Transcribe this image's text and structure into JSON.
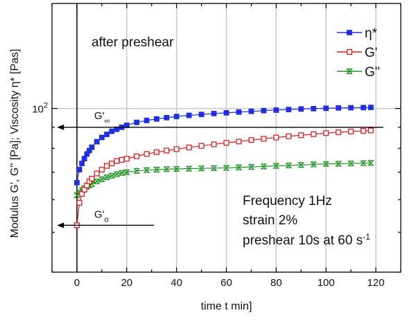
{
  "chart_data": {
    "type": "scatter",
    "xlabel": "time t min]",
    "ylabel": "Modulus G', G'' [Pa]; Viscosity η* [Pas]",
    "xlim": [
      -10,
      130
    ],
    "ylim": [
      40,
      180
    ],
    "yscale": "log",
    "grid": true,
    "legend_position": "top-right",
    "x_ticks": [
      0,
      20,
      40,
      60,
      80,
      100,
      120
    ],
    "y_tick_label": {
      "base": "10",
      "exp": "2",
      "value": 100
    },
    "annotations": {
      "title": "after preshear",
      "frequency": "Frequency 1Hz",
      "strain": "strain 2%",
      "preshear_text": "preshear 10s at 60 s",
      "preshear_exp": "-1",
      "g_inf_base": "G'",
      "g_inf_sub": "∞",
      "g_zero_base": "G'",
      "g_zero_sub": "o",
      "g_inf_value": 90,
      "g_zero_value": 52
    },
    "series": [
      {
        "name": "η*",
        "color": "#1f2ee0",
        "marker": "filled-square",
        "x": [
          0,
          1,
          2,
          3,
          4,
          5,
          6,
          8,
          10,
          12,
          14,
          16,
          18,
          20,
          24,
          28,
          32,
          36,
          40,
          45,
          50,
          55,
          60,
          65,
          70,
          75,
          80,
          85,
          90,
          95,
          100,
          105,
          110,
          115,
          118
        ],
        "y": [
          66,
          71,
          73.5,
          75.5,
          77.5,
          79,
          80.5,
          83,
          85,
          86.5,
          88,
          89,
          90,
          91,
          92.5,
          93.5,
          94.3,
          95,
          95.6,
          96.2,
          96.7,
          97.2,
          97.6,
          98,
          98.4,
          98.8,
          99.1,
          99.4,
          99.7,
          99.9,
          100.1,
          100.3,
          100.4,
          100.5,
          100.6
        ]
      },
      {
        "name": "G'",
        "color": "#e01a1a",
        "marker": "open-square",
        "x": [
          0,
          1,
          2,
          3,
          4,
          5,
          6,
          8,
          10,
          12,
          14,
          16,
          18,
          20,
          24,
          28,
          32,
          36,
          40,
          45,
          50,
          55,
          60,
          65,
          70,
          75,
          80,
          85,
          90,
          95,
          100,
          105,
          110,
          115,
          118
        ],
        "y": [
          52,
          59,
          62,
          63.5,
          65,
          66.5,
          67.5,
          69.5,
          71,
          72.5,
          73.5,
          74.5,
          75,
          75.5,
          76.5,
          77.5,
          78.3,
          79,
          79.6,
          80.4,
          81.1,
          81.8,
          82.5,
          83.1,
          83.8,
          84.4,
          85,
          85.6,
          86.1,
          86.6,
          87.1,
          87.5,
          87.9,
          88.2,
          88.4
        ]
      },
      {
        "name": "G''",
        "color": "#1a9420",
        "marker": "bowtie",
        "x": [
          0,
          1,
          2,
          3,
          4,
          5,
          6,
          8,
          10,
          12,
          14,
          16,
          18,
          20,
          24,
          28,
          32,
          36,
          40,
          45,
          50,
          55,
          60,
          65,
          70,
          75,
          80,
          85,
          90,
          95,
          100,
          105,
          110,
          115,
          118
        ],
        "y": [
          61.5,
          62.5,
          63.3,
          64,
          64.5,
          65,
          65.5,
          66.5,
          67.3,
          68,
          68.6,
          69.2,
          69.7,
          70,
          70.5,
          70.8,
          71,
          71.2,
          71.3,
          71.4,
          71.5,
          71.6,
          71.7,
          71.9,
          72.1,
          72.3,
          72.5,
          72.7,
          72.9,
          73.1,
          73.3,
          73.4,
          73.5,
          73.6,
          73.7
        ]
      }
    ]
  }
}
